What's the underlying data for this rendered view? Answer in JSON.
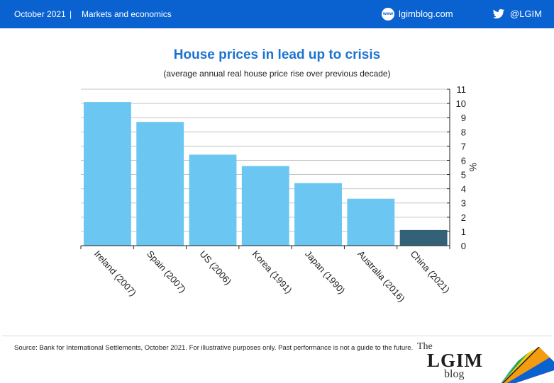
{
  "header": {
    "date": "October 2021",
    "separator": "|",
    "section": "Markets and economics",
    "site_icon": "www-globe-icon",
    "site": "lgimblog.com",
    "social_icon": "twitter-bird-icon",
    "handle": "@LGIM"
  },
  "chart_data": {
    "type": "bar",
    "title": "House prices in lead up to crisis",
    "subtitle": "(average annual real house price rise over previous decade)",
    "categories": [
      "Ireland (2007)",
      "Spain (2007)",
      "US (2006)",
      "Korea (1991)",
      "Japan (1990)",
      "Australia (2016)",
      "China (2021)"
    ],
    "values": [
      10.1,
      8.7,
      6.4,
      5.6,
      4.4,
      3.3,
      1.1
    ],
    "bar_colors": [
      "#6cc6f2",
      "#6cc6f2",
      "#6cc6f2",
      "#6cc6f2",
      "#6cc6f2",
      "#6cc6f2",
      "#336178"
    ],
    "ylabel": "%",
    "ylim": [
      0,
      11
    ],
    "yticks": [
      0,
      1,
      2,
      3,
      4,
      5,
      6,
      7,
      8,
      9,
      10,
      11
    ],
    "y_axis_side": "right",
    "grid": true,
    "legend": "none"
  },
  "footer": {
    "source": "Source: Bank for International Settlements, October 2021. For illustrative purposes only. Past performance is not a guide to the future.",
    "logo_the": "The",
    "logo_main": "LGIM",
    "logo_blog": "blog"
  }
}
